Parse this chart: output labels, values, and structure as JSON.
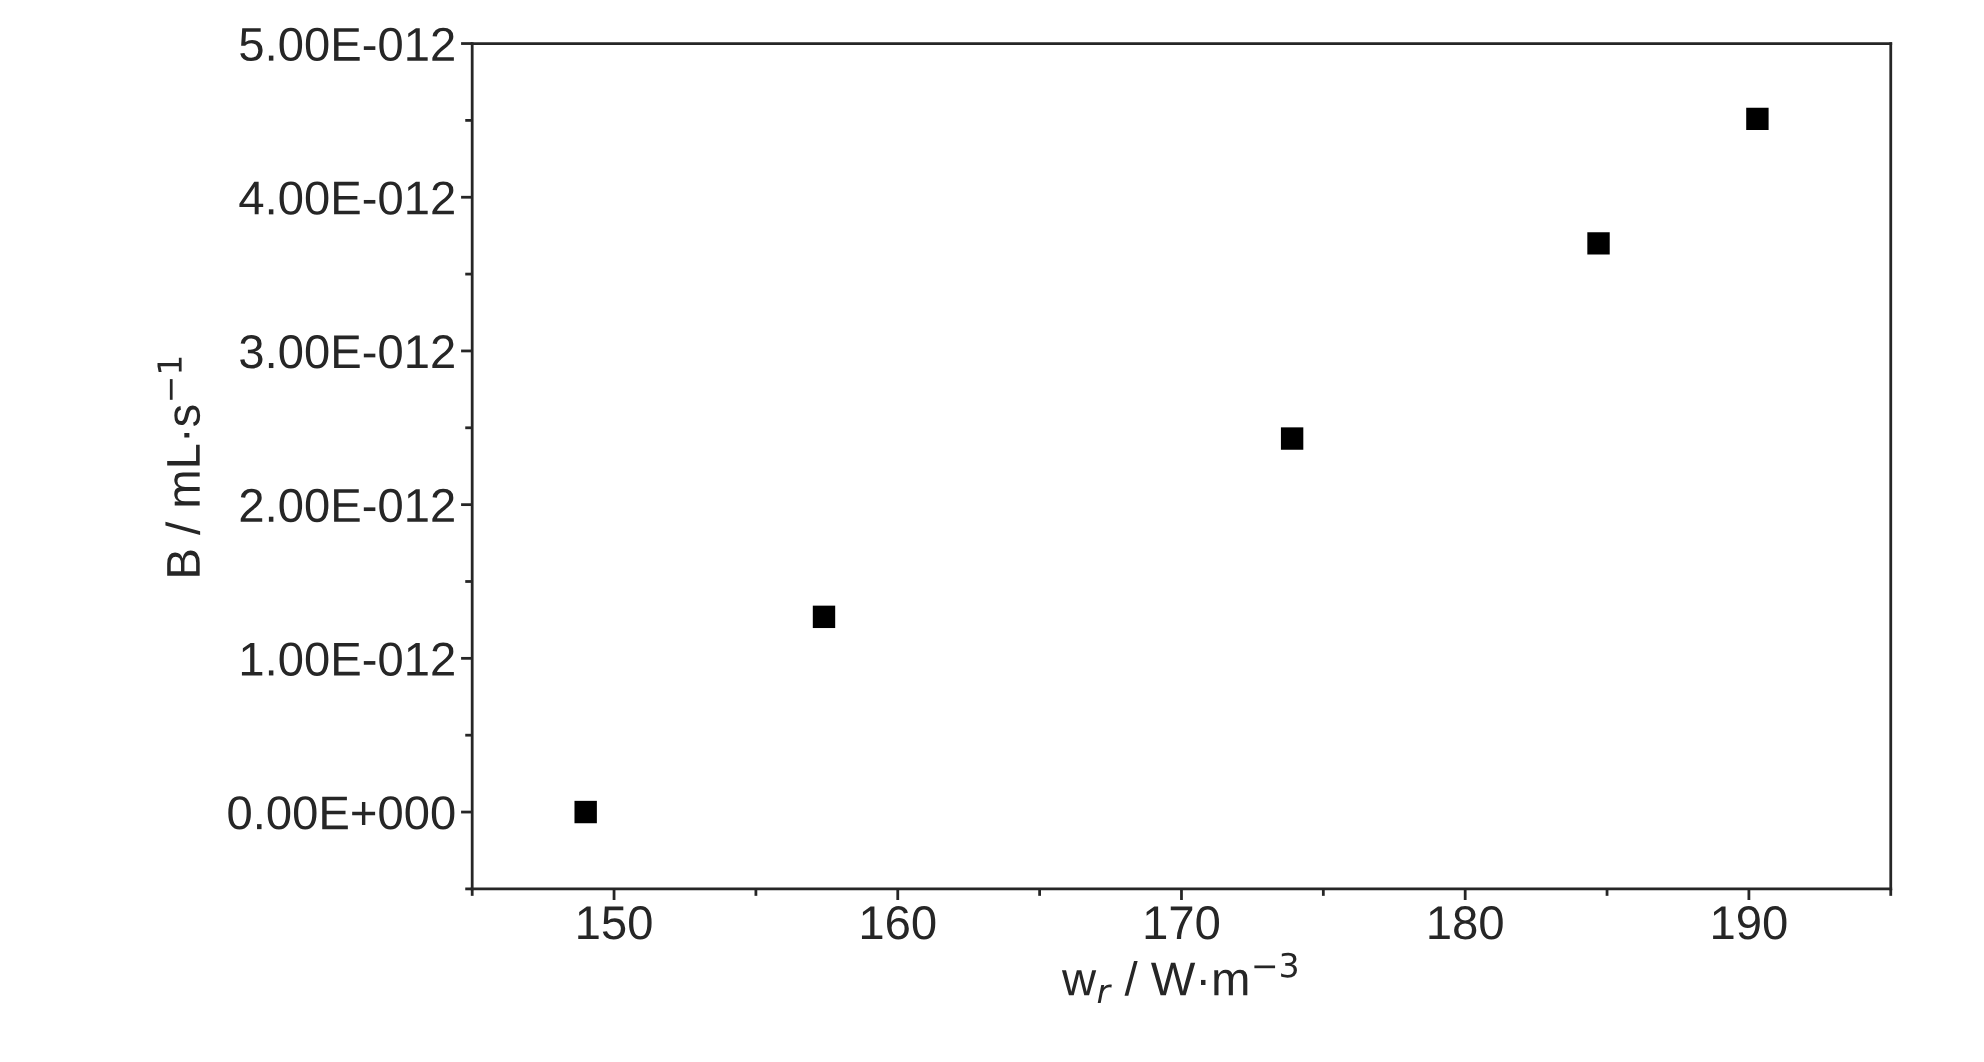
{
  "chart_data": {
    "type": "scatter",
    "xlabel": "w$_{r}$ / W·m$^{−3}$",
    "ylabel": "B / mL·s$^{−1}$",
    "x": [
      149.0,
      157.4,
      173.9,
      184.7,
      190.3
    ],
    "series": [
      {
        "color": "#000000",
        "values": [
          0.0,
          1.27e-12,
          2.43e-12,
          3.7e-12,
          4.51e-12
        ]
      }
    ],
    "marker": "square",
    "grid": false,
    "legend": false,
    "xlim": [
      145,
      195
    ],
    "xticks": [
      150,
      160,
      170,
      180,
      190
    ],
    "ylim": [
      -5e-13,
      5e-12
    ],
    "yticks": [
      {
        "value": 0,
        "label": "0.00E+000"
      },
      {
        "value": 1e-12,
        "label": "1.00E-012"
      },
      {
        "value": 2e-12,
        "label": "2.00E-012"
      },
      {
        "value": 3e-12,
        "label": "3.00E-012"
      },
      {
        "value": 4e-12,
        "label": "4.00E-012"
      },
      {
        "value": 5e-12,
        "label": "5.00E-012"
      }
    ]
  }
}
